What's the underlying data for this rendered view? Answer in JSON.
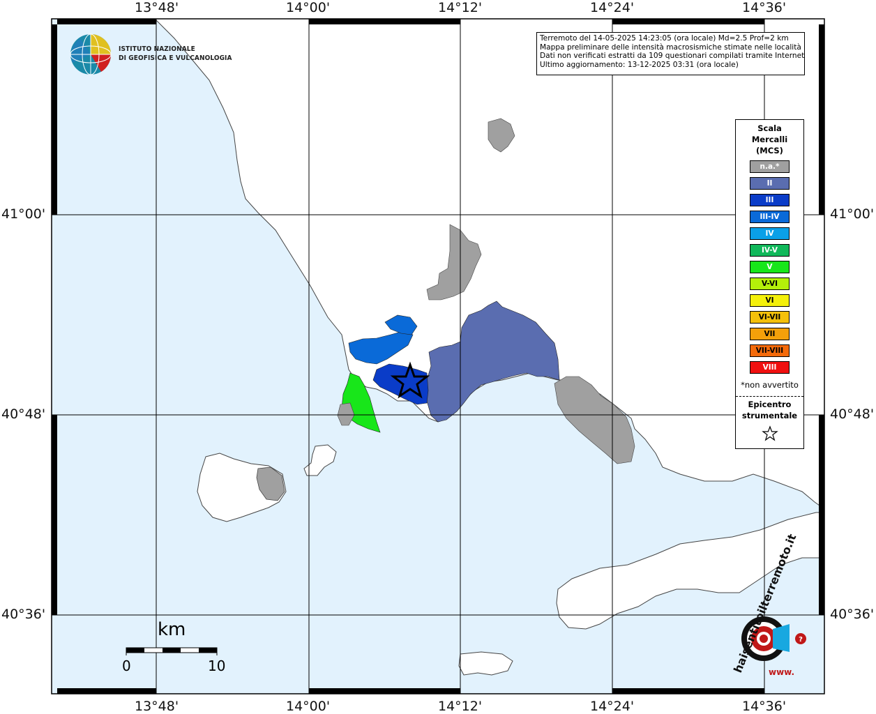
{
  "map": {
    "longitude_ticks": [
      "13°48'",
      "14°00'",
      "14°12'",
      "14°24'",
      "14°36'"
    ],
    "latitude_ticks": [
      "41°00'",
      "40°48'",
      "40°36'"
    ]
  },
  "info": {
    "line1": "Terremoto del 14-05-2025 14:23:05 (ora locale) Md=2.5 Prof=2 km",
    "line2": "Mappa preliminare delle intensità macrosismiche stimate nelle località",
    "line3": "Dati non verificati estratti da 109 questionari compilati tramite Internet.",
    "line4": "Ultimo aggiornamento: 13-12-2025 03:31 (ora locale)"
  },
  "logo": {
    "line1": "ISTITUTO NAZIONALE",
    "line2": "DI GEOFISICA E VULCANOLOGIA"
  },
  "legend": {
    "title_l1": "Scala",
    "title_l2": "Mercalli",
    "title_l3": "(MCS)",
    "items": [
      {
        "label": "n.a.*",
        "color": "#a0a0a0"
      },
      {
        "label": "II",
        "color": "#5a6db0"
      },
      {
        "label": "III",
        "color": "#0a3cc8"
      },
      {
        "label": "III-IV",
        "color": "#0a6ad8"
      },
      {
        "label": "IV",
        "color": "#0aa0e8"
      },
      {
        "label": "IV-V",
        "color": "#10b85a"
      },
      {
        "label": "V",
        "color": "#18e61a"
      },
      {
        "label": "V-VI",
        "color": "#b4f00a"
      },
      {
        "label": "VI",
        "color": "#f4f00a"
      },
      {
        "label": "VI-VII",
        "color": "#f4c00a"
      },
      {
        "label": "VII",
        "color": "#f4a00a"
      },
      {
        "label": "VII-VIII",
        "color": "#f46a0a"
      },
      {
        "label": "VIII",
        "color": "#f01010"
      }
    ],
    "note": "*non avvertito",
    "epicenter_l1": "Epicentro",
    "epicenter_l2": "strumentale"
  },
  "scale_bar": {
    "unit": "km",
    "min": "0",
    "max": "10"
  },
  "watermark": {
    "text": "haisentitoilterremoto.it",
    "url": "www."
  },
  "colors": {
    "sea": "#e2f2fd",
    "land": "#ffffff",
    "not_felt": "#a0a0a0",
    "intensity_ii": "#5a6db0",
    "intensity_iii": "#0a3cc8",
    "intensity_iii_iv": "#0a6ad8",
    "intensity_v": "#18e61a"
  }
}
